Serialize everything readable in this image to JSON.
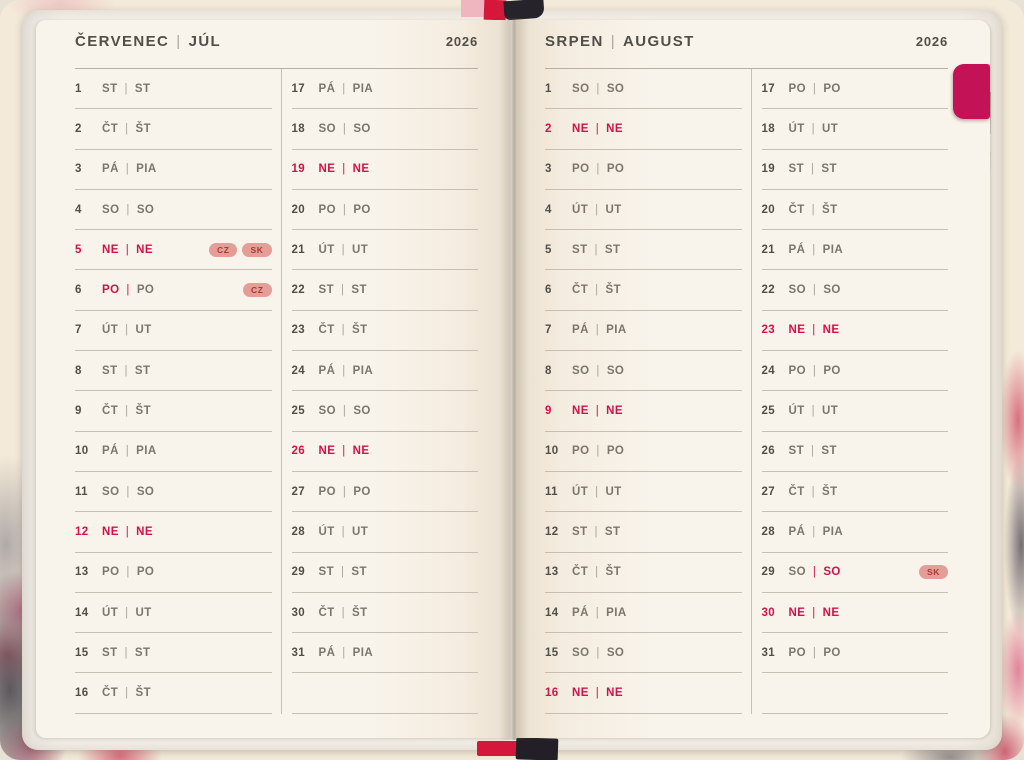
{
  "book": {
    "title_separator": "|",
    "day_separator": "|",
    "colors": {
      "accent_red": "#d2104a",
      "badge_bg": "#e59e97",
      "badge_text": "#a83a31",
      "tab_pink": "#c31356",
      "ribbon_pink": "#efb6c0",
      "ribbon_red": "#d5173c",
      "ribbon_black": "#26232a"
    },
    "months": [
      {
        "id": "july",
        "title_cz": "ČERVENEC",
        "title_sk": "JÚL",
        "year": "2026",
        "columns": [
          [
            {
              "day": "1",
              "cz": "ST",
              "sk": "ST"
            },
            {
              "day": "2",
              "cz": "ČT",
              "sk": "ŠT"
            },
            {
              "day": "3",
              "cz": "PÁ",
              "sk": "PIA"
            },
            {
              "day": "4",
              "cz": "SO",
              "sk": "SO"
            },
            {
              "day": "5",
              "cz": "NE",
              "sk": "NE",
              "style": "holiday-both",
              "badges": [
                "CZ",
                "SK"
              ]
            },
            {
              "day": "6",
              "cz": "PO",
              "sk": "PO",
              "style": "holiday-cz",
              "badges": [
                "CZ"
              ]
            },
            {
              "day": "7",
              "cz": "ÚT",
              "sk": "UT"
            },
            {
              "day": "8",
              "cz": "ST",
              "sk": "ST"
            },
            {
              "day": "9",
              "cz": "ČT",
              "sk": "ŠT"
            },
            {
              "day": "10",
              "cz": "PÁ",
              "sk": "PIA"
            },
            {
              "day": "11",
              "cz": "SO",
              "sk": "SO"
            },
            {
              "day": "12",
              "cz": "NE",
              "sk": "NE",
              "style": "holiday-both"
            },
            {
              "day": "13",
              "cz": "PO",
              "sk": "PO"
            },
            {
              "day": "14",
              "cz": "ÚT",
              "sk": "UT"
            },
            {
              "day": "15",
              "cz": "ST",
              "sk": "ST"
            },
            {
              "day": "16",
              "cz": "ČT",
              "sk": "ŠT"
            }
          ],
          [
            {
              "day": "17",
              "cz": "PÁ",
              "sk": "PIA"
            },
            {
              "day": "18",
              "cz": "SO",
              "sk": "SO"
            },
            {
              "day": "19",
              "cz": "NE",
              "sk": "NE",
              "style": "holiday-both"
            },
            {
              "day": "20",
              "cz": "PO",
              "sk": "PO"
            },
            {
              "day": "21",
              "cz": "ÚT",
              "sk": "UT"
            },
            {
              "day": "22",
              "cz": "ST",
              "sk": "ST"
            },
            {
              "day": "23",
              "cz": "ČT",
              "sk": "ŠT"
            },
            {
              "day": "24",
              "cz": "PÁ",
              "sk": "PIA"
            },
            {
              "day": "25",
              "cz": "SO",
              "sk": "SO"
            },
            {
              "day": "26",
              "cz": "NE",
              "sk": "NE",
              "style": "holiday-both"
            },
            {
              "day": "27",
              "cz": "PO",
              "sk": "PO"
            },
            {
              "day": "28",
              "cz": "ÚT",
              "sk": "UT"
            },
            {
              "day": "29",
              "cz": "ST",
              "sk": "ST"
            },
            {
              "day": "30",
              "cz": "ČT",
              "sk": "ŠT"
            },
            {
              "day": "31",
              "cz": "PÁ",
              "sk": "PIA"
            }
          ]
        ]
      },
      {
        "id": "august",
        "title_cz": "SRPEN",
        "title_sk": "AUGUST",
        "year": "2026",
        "columns": [
          [
            {
              "day": "1",
              "cz": "SO",
              "sk": "SO"
            },
            {
              "day": "2",
              "cz": "NE",
              "sk": "NE",
              "style": "holiday-both"
            },
            {
              "day": "3",
              "cz": "PO",
              "sk": "PO"
            },
            {
              "day": "4",
              "cz": "ÚT",
              "sk": "UT"
            },
            {
              "day": "5",
              "cz": "ST",
              "sk": "ST"
            },
            {
              "day": "6",
              "cz": "ČT",
              "sk": "ŠT"
            },
            {
              "day": "7",
              "cz": "PÁ",
              "sk": "PIA"
            },
            {
              "day": "8",
              "cz": "SO",
              "sk": "SO"
            },
            {
              "day": "9",
              "cz": "NE",
              "sk": "NE",
              "style": "holiday-both"
            },
            {
              "day": "10",
              "cz": "PO",
              "sk": "PO"
            },
            {
              "day": "11",
              "cz": "ÚT",
              "sk": "UT"
            },
            {
              "day": "12",
              "cz": "ST",
              "sk": "ST"
            },
            {
              "day": "13",
              "cz": "ČT",
              "sk": "ŠT"
            },
            {
              "day": "14",
              "cz": "PÁ",
              "sk": "PIA"
            },
            {
              "day": "15",
              "cz": "SO",
              "sk": "SO"
            },
            {
              "day": "16",
              "cz": "NE",
              "sk": "NE",
              "style": "holiday-both"
            }
          ],
          [
            {
              "day": "17",
              "cz": "PO",
              "sk": "PO"
            },
            {
              "day": "18",
              "cz": "ÚT",
              "sk": "UT"
            },
            {
              "day": "19",
              "cz": "ST",
              "sk": "ST"
            },
            {
              "day": "20",
              "cz": "ČT",
              "sk": "ŠT"
            },
            {
              "day": "21",
              "cz": "PÁ",
              "sk": "PIA"
            },
            {
              "day": "22",
              "cz": "SO",
              "sk": "SO"
            },
            {
              "day": "23",
              "cz": "NE",
              "sk": "NE",
              "style": "holiday-both"
            },
            {
              "day": "24",
              "cz": "PO",
              "sk": "PO"
            },
            {
              "day": "25",
              "cz": "ÚT",
              "sk": "UT"
            },
            {
              "day": "26",
              "cz": "ST",
              "sk": "ST"
            },
            {
              "day": "27",
              "cz": "ČT",
              "sk": "ŠT"
            },
            {
              "day": "28",
              "cz": "PÁ",
              "sk": "PIA"
            },
            {
              "day": "29",
              "cz": "SO",
              "sk": "SO",
              "style": "holiday-sk",
              "badges": [
                "SK"
              ]
            },
            {
              "day": "30",
              "cz": "NE",
              "sk": "NE",
              "style": "holiday-both"
            },
            {
              "day": "31",
              "cz": "PO",
              "sk": "PO"
            }
          ]
        ]
      }
    ]
  }
}
